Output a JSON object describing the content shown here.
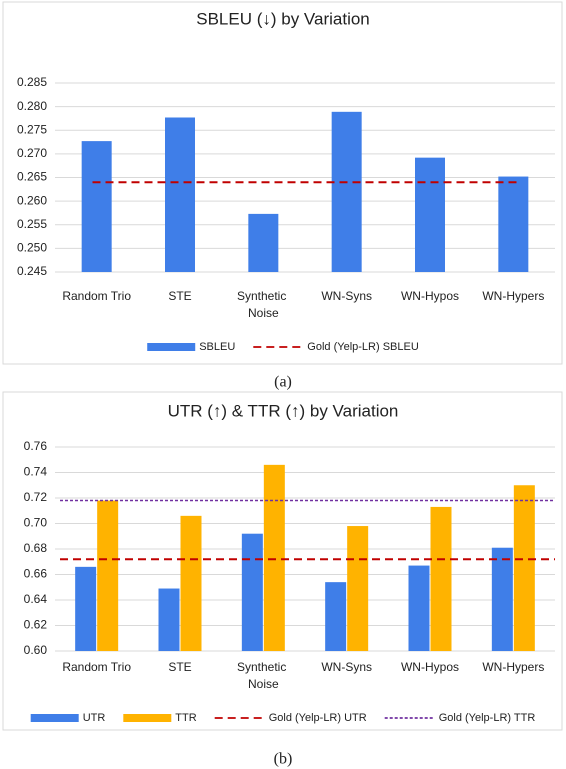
{
  "chart_data": [
    {
      "type": "bar",
      "title": "SBLEU (↓) by Variation",
      "categories": [
        "Random Trio",
        "STE",
        "Synthetic Noise",
        "WN-Syns",
        "WN-Hypos",
        "WN-Hypers"
      ],
      "series": [
        {
          "name": "SBLEU",
          "color": "#3f7ee8",
          "values": [
            0.2727,
            0.2777,
            0.2573,
            0.2789,
            0.2692,
            0.2652
          ]
        }
      ],
      "reference_lines": [
        {
          "name": "Gold (Yelp-LR) SBLEU",
          "value": 0.264,
          "color": "#c00000"
        }
      ],
      "ylim": [
        0.245,
        0.285
      ],
      "yticks": [
        0.245,
        {
          "value": 0.25,
          "label": "0.250"
        },
        0.255,
        {
          "value": 0.26,
          "label": "0.260"
        },
        0.265,
        {
          "value": 0.27,
          "label": "0.270"
        },
        0.275,
        {
          "value": 0.28,
          "label": "0.280"
        },
        0.285
      ],
      "grid": true,
      "legend": "bottom",
      "caption": "(a)"
    },
    {
      "type": "bar",
      "title": "UTR (↑) & TTR (↑) by Variation",
      "categories": [
        "Random Trio",
        "STE",
        "Synthetic Noise",
        "WN-Syns",
        "WN-Hypos",
        "WN-Hypers"
      ],
      "series": [
        {
          "name": "UTR",
          "color": "#3f7ee8",
          "values": [
            0.666,
            0.649,
            0.692,
            0.654,
            0.667,
            0.681
          ]
        },
        {
          "name": "TTR",
          "color": "#ffb300",
          "values": [
            0.718,
            0.706,
            0.746,
            0.698,
            0.713,
            0.73
          ]
        }
      ],
      "reference_lines": [
        {
          "name": "Gold (Yelp-LR) UTR",
          "value": 0.672,
          "color": "#c00000"
        },
        {
          "name": "Gold (Yelp-LR) TTR",
          "value": 0.718,
          "color": "#7030a0"
        }
      ],
      "ylim": [
        0.6,
        0.76
      ],
      "yticks": [
        {
          "value": 0.6,
          "label": "0.60"
        },
        0.62,
        0.64,
        0.66,
        0.68,
        {
          "value": 0.7,
          "label": "0.70"
        },
        0.72,
        0.74,
        0.76
      ],
      "grid": true,
      "legend": "bottom",
      "caption": "(b)"
    }
  ]
}
